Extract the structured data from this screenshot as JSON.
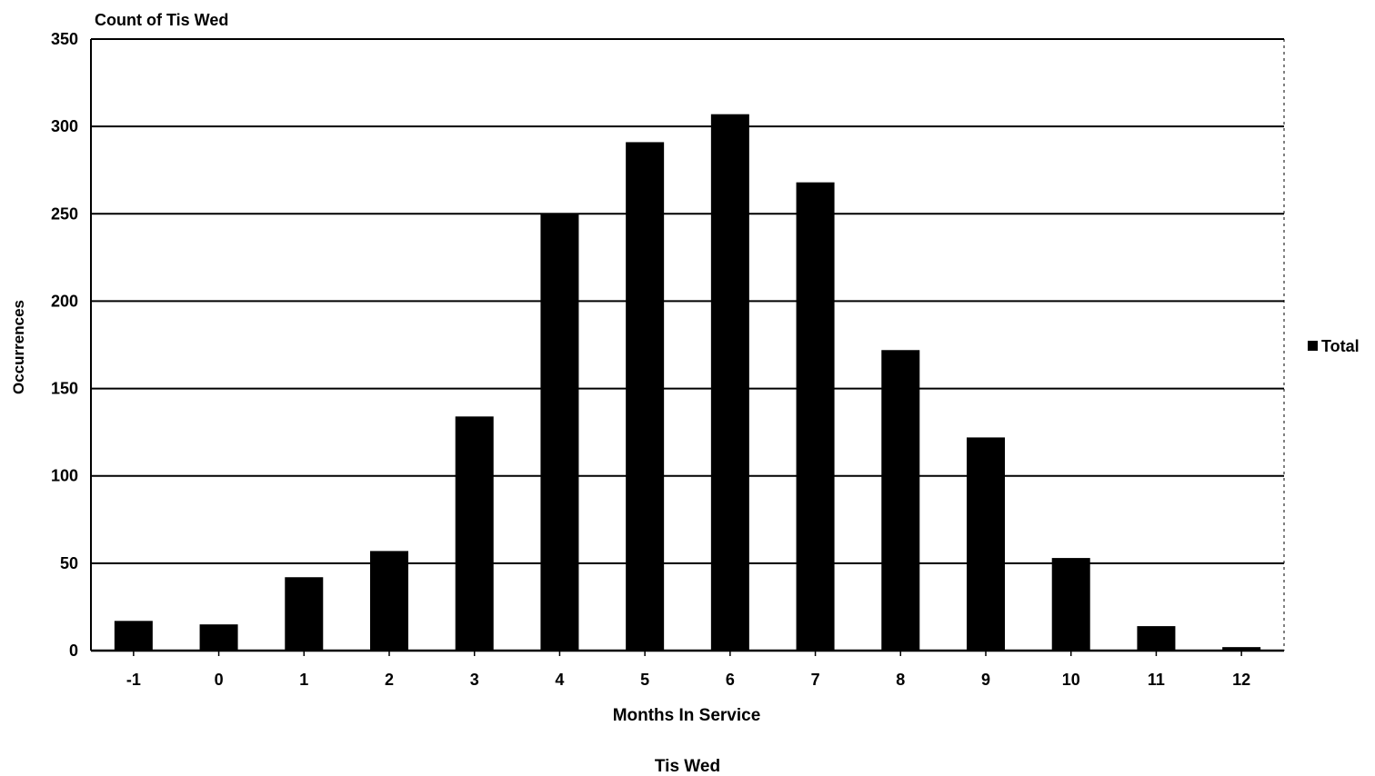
{
  "chart_data": {
    "type": "bar",
    "title": "Count of Tis Wed",
    "xlabel": "Months In Service",
    "ylabel": "Occurrences",
    "footer": "Tis Wed",
    "categories": [
      "-1",
      "0",
      "1",
      "2",
      "3",
      "4",
      "5",
      "6",
      "7",
      "8",
      "9",
      "10",
      "11",
      "12"
    ],
    "series": [
      {
        "name": "Total",
        "values": [
          17,
          15,
          42,
          57,
          134,
          250,
          291,
          307,
          268,
          172,
          122,
          53,
          14,
          2
        ]
      }
    ],
    "ylim": [
      0,
      350
    ],
    "yticks": [
      "0",
      "50",
      "100",
      "150",
      "200",
      "250",
      "300",
      "350"
    ],
    "grid": true,
    "legend_position": "right",
    "colors": {
      "bar": "#000000",
      "grid": "#000000",
      "background": "#ffffff"
    }
  }
}
